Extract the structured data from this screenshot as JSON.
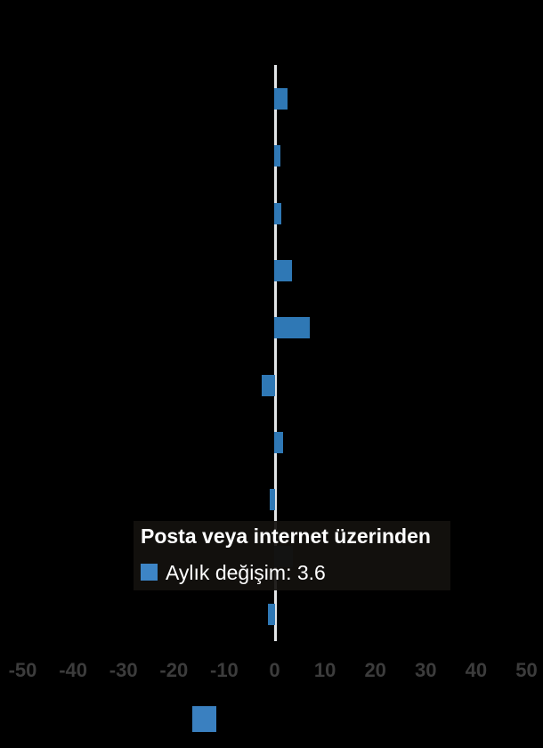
{
  "colors": {
    "background": "#000000",
    "bar": "#2f78b5",
    "bar_highlighted": "#102a40",
    "zero_line": "#e3e6e8",
    "tick_label": "#3c3c3c",
    "tooltip_text": "#ffffff",
    "tooltip_swatch": "#3d85c6",
    "footer_swatch": "#3a80c0"
  },
  "chart_data": {
    "type": "bar",
    "orientation": "horizontal",
    "title": "",
    "series_name": "Aylık değişim",
    "values": [
      2.6,
      1.1,
      1.4,
      3.5,
      6.9,
      -2.5,
      1.6,
      -1.0,
      3.6,
      -1.3
    ],
    "highlighted_index": 8,
    "highlighted_value": 3.6,
    "category_labels_visible": false,
    "xlim": [
      -50,
      50
    ],
    "x_ticks": [
      -50,
      -40,
      -30,
      -20,
      -10,
      0,
      10,
      20,
      30,
      40,
      50
    ],
    "grid": "off",
    "legend_position": "tooltip-overlay"
  },
  "tooltip": {
    "title": "Posta veya internet üzerinden",
    "series_label": "Aylık değişim",
    "value_text": "Aylık değişim: 3.6"
  }
}
